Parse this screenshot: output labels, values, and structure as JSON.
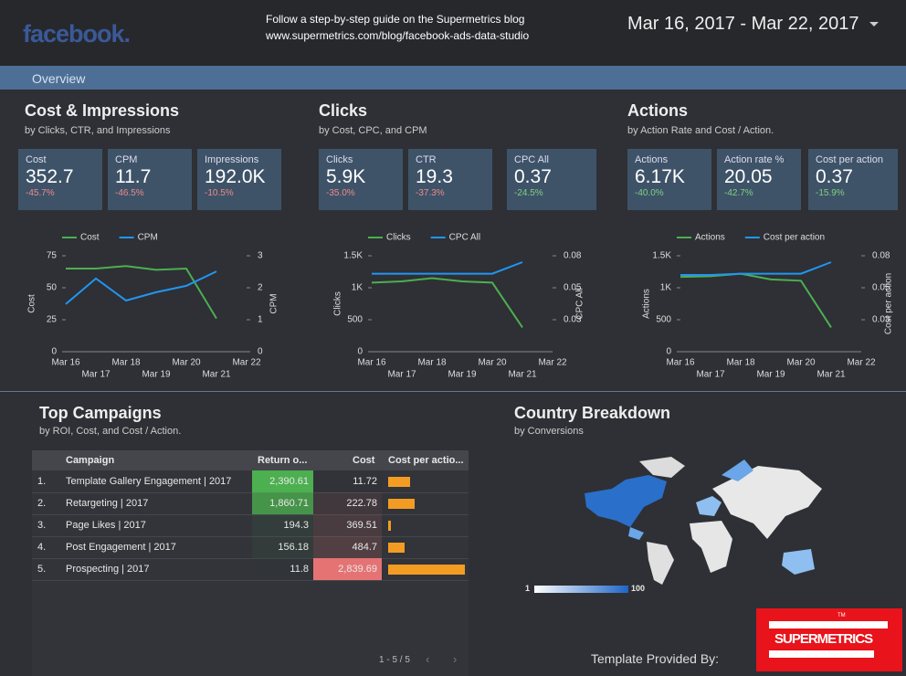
{
  "header": {
    "logo": "facebook.",
    "guide": "Follow a step-by-step guide on the Supermetrics blog",
    "url": "www.supermetrics.com/blog/facebook-ads-data-studio",
    "date_range": "Mar 16, 2017 - Mar 22, 2017"
  },
  "tab": "Overview",
  "panels": [
    {
      "title": "Cost & Impressions",
      "subtitle": "by Clicks, CTR, and Impressions",
      "scorecards": [
        {
          "label": "Cost",
          "value": "352.7",
          "delta": "-45.7%"
        },
        {
          "label": "CPM",
          "value": "11.7",
          "delta": "-46.5%"
        },
        {
          "label": "Impressions",
          "value": "192.0K",
          "delta": "-10.5%"
        }
      ],
      "chart": {
        "type": "line",
        "categories": [
          "Mar 16",
          "Mar 17",
          "Mar 18",
          "Mar 19",
          "Mar 20",
          "Mar 21",
          "Mar 22"
        ],
        "series": [
          {
            "name": "Cost",
            "color": "#4caf50",
            "values": [
              65,
              65,
              67,
              64,
              65,
              26,
              null
            ]
          },
          {
            "name": "CPM",
            "color": "#2196f3",
            "axis": "y2",
            "values": [
              1.49,
              2.29,
              1.6,
              1.86,
              2.06,
              2.51,
              null
            ]
          }
        ],
        "ylabel": "Cost",
        "y2label": "CPM",
        "ylim": [
          0,
          75
        ],
        "yticks": [
          0,
          25,
          50,
          75
        ],
        "y2lim": [
          0,
          3
        ],
        "y2ticks": [
          0,
          1,
          2,
          3
        ]
      }
    },
    {
      "title": "Clicks",
      "subtitle": "by Cost, CPC, and CPM",
      "scorecards": [
        {
          "label": "Clicks",
          "value": "5.9K",
          "delta": "-35.0%"
        },
        {
          "label": "CTR",
          "value": "19.3",
          "delta": "-37.3%"
        },
        {
          "label": "CPC All",
          "value": "0.37",
          "delta": "-24.5%"
        }
      ],
      "chart": {
        "type": "line",
        "categories": [
          "Mar 16",
          "Mar 17",
          "Mar 18",
          "Mar 19",
          "Mar 20",
          "Mar 21",
          "Mar 22"
        ],
        "series": [
          {
            "name": "Clicks",
            "color": "#4caf50",
            "values": [
              1080,
              1100,
              1150,
              1100,
              1080,
              380,
              null
            ]
          },
          {
            "name": "CPC All",
            "color": "#2196f3",
            "axis": "y2",
            "values": [
              0.061,
              0.061,
              0.061,
              0.061,
              0.061,
              0.07,
              null
            ]
          }
        ],
        "ylabel": "Clicks",
        "y2label": "CPC All",
        "ylim": [
          0,
          1500
        ],
        "yticks": [
          0,
          500,
          {
            "value": 1000,
            "label": "1K"
          },
          {
            "value": 1500,
            "label": "1.5K"
          }
        ],
        "y2lim": [
          0,
          0.075
        ],
        "y2ticks": [
          {
            "value": 0.025,
            "label": "0.03"
          },
          0.05,
          {
            "value": 0.075,
            "label": "0.08"
          }
        ]
      }
    },
    {
      "title": "Actions",
      "subtitle": "by Action Rate and Cost / Action.",
      "scorecards": [
        {
          "label": "Actions",
          "value": "6.17K",
          "delta": "-40.0%"
        },
        {
          "label": "Action rate %",
          "value": "20.05",
          "delta": "-42.7%"
        },
        {
          "label": "Cost per action",
          "value": "0.37",
          "delta": "-15.9%"
        }
      ],
      "chart": {
        "type": "line",
        "categories": [
          "Mar 16",
          "Mar 17",
          "Mar 18",
          "Mar 19",
          "Mar 20",
          "Mar 21",
          "Mar 22"
        ],
        "series": [
          {
            "name": "Actions",
            "color": "#4caf50",
            "values": [
              1170,
              1180,
              1220,
              1130,
              1110,
              380,
              null
            ]
          },
          {
            "name": "Cost per action",
            "color": "#2196f3",
            "axis": "y2",
            "values": [
              0.06,
              0.06,
              0.061,
              0.061,
              0.061,
              0.07,
              null
            ]
          }
        ],
        "ylabel": "Actions",
        "y2label": "Cost per action",
        "ylim": [
          0,
          1500
        ],
        "yticks": [
          0,
          500,
          {
            "value": 1000,
            "label": "1K"
          },
          {
            "value": 1500,
            "label": "1.5K"
          }
        ],
        "y2lim": [
          0,
          0.075
        ],
        "y2ticks": [
          {
            "value": 0.025,
            "label": "0.03"
          },
          0.05,
          {
            "value": 0.075,
            "label": "0.08"
          }
        ]
      }
    }
  ],
  "campaigns": {
    "title": "Top Campaigns",
    "subtitle": "by ROI, Cost, and Cost / Action.",
    "columns": [
      "Campaign",
      "Return o...",
      "Cost",
      "Cost per actio..."
    ],
    "rows": [
      {
        "rank": "1.",
        "name": "Template Gallery Engagement | 2017",
        "roi": "2,390.61",
        "roi_value": 2390.61,
        "cost": "11.72",
        "cost_value": 11.72,
        "cpa": 0.28
      },
      {
        "rank": "2.",
        "name": "Retargeting | 2017",
        "roi": "1,860.71",
        "roi_value": 1860.71,
        "cost": "222.78",
        "cost_value": 222.78,
        "cpa": 0.34
      },
      {
        "rank": "3.",
        "name": "Page Likes | 2017",
        "roi": "194.3",
        "roi_value": 194.3,
        "cost": "369.51",
        "cost_value": 369.51,
        "cpa": 0.03
      },
      {
        "rank": "4.",
        "name": "Post Engagement | 2017",
        "roi": "156.18",
        "roi_value": 156.18,
        "cost": "484.7",
        "cost_value": 484.7,
        "cpa": 0.21
      },
      {
        "rank": "5.",
        "name": "Prospecting | 2017",
        "roi": "11.8",
        "roi_value": 11.8,
        "cost": "2,839.69",
        "cost_value": 2839.69,
        "cpa": 1.0
      }
    ],
    "pagination": "1 - 5 / 5"
  },
  "country": {
    "title": "Country Breakdown",
    "subtitle": "by Conversions",
    "legend_min": "1",
    "legend_max": "100"
  },
  "footer": {
    "provided": "Template Provided By:",
    "logo": "SUPERMETRICS",
    "tm": "TM"
  }
}
